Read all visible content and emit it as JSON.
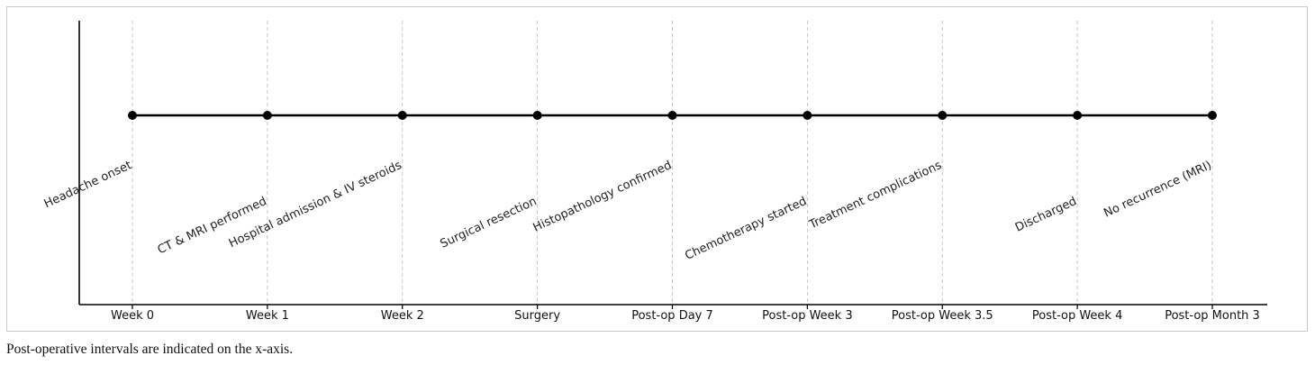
{
  "chart_data": {
    "type": "timeline",
    "categories": [
      "Week 0",
      "Week 1",
      "Week 2",
      "Surgery",
      "Post-op Day 7",
      "Post-op Week 3",
      "Post-op Week 3.5",
      "Post-op Week 4",
      "Post-op Month 3"
    ],
    "events": [
      "Headache onset",
      "CT & MRI performed",
      "Hospital admission & IV steroids",
      "Surgical resection",
      "Histopathology confirmed",
      "Chemotherapy started",
      "Treatment complications",
      "Discharged",
      "No recurrence (MRI)"
    ],
    "grid": true,
    "line_color": "#000000",
    "marker_color": "#000000"
  },
  "caption": "Post-operative intervals are indicated on the x-axis."
}
